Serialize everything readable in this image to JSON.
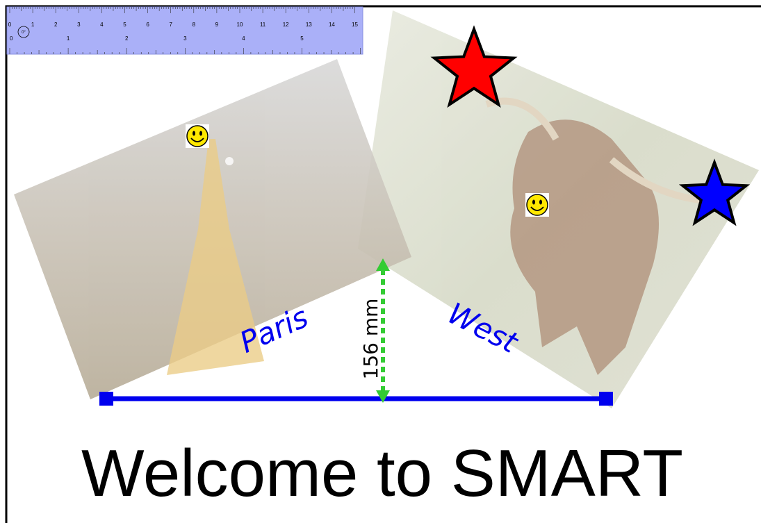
{
  "ruler": {
    "cm_labels": [
      0,
      1,
      2,
      3,
      4,
      5,
      6,
      7,
      8,
      9,
      10,
      11,
      12,
      13,
      14,
      15
    ],
    "inch_labels": [
      0,
      1,
      2,
      3,
      4,
      5
    ],
    "angle": "0°"
  },
  "photos": [
    {
      "label": "Paris"
    },
    {
      "label": "West"
    }
  ],
  "measurement": "156 mm",
  "title": "Welcome to SMART"
}
